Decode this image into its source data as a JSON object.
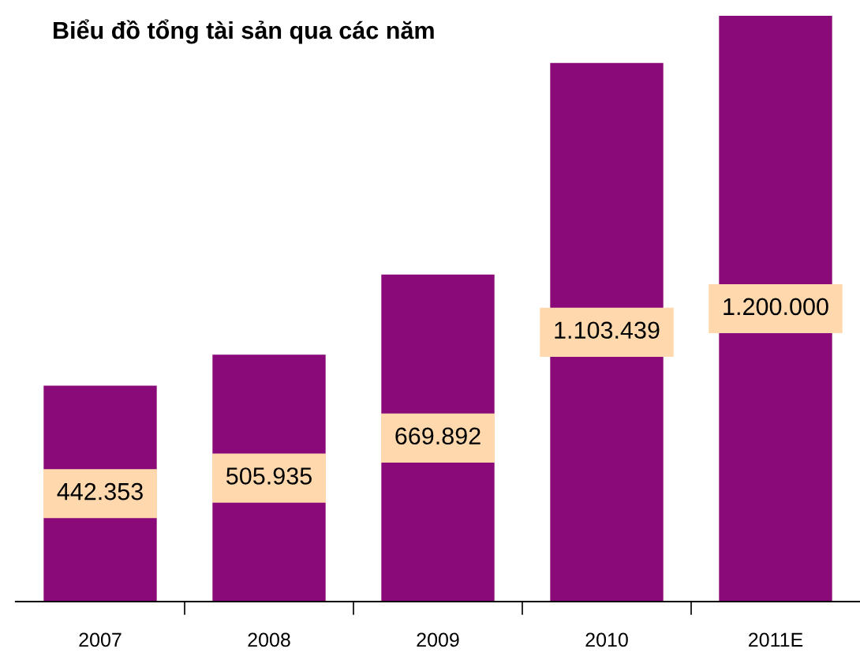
{
  "chart_data": {
    "type": "bar",
    "title": "Biểu đồ tổng tài sản qua các năm",
    "categories": [
      "2007",
      "2008",
      "2009",
      "2010",
      "2011E"
    ],
    "values": [
      442353,
      505935,
      669892,
      1103439,
      1200000
    ],
    "value_labels": [
      "442.353",
      "505.935",
      "669.892",
      "1.103.439",
      "1.200.000"
    ],
    "color": "#8a0a7a",
    "tick_labels": "x",
    "grid": false
  }
}
